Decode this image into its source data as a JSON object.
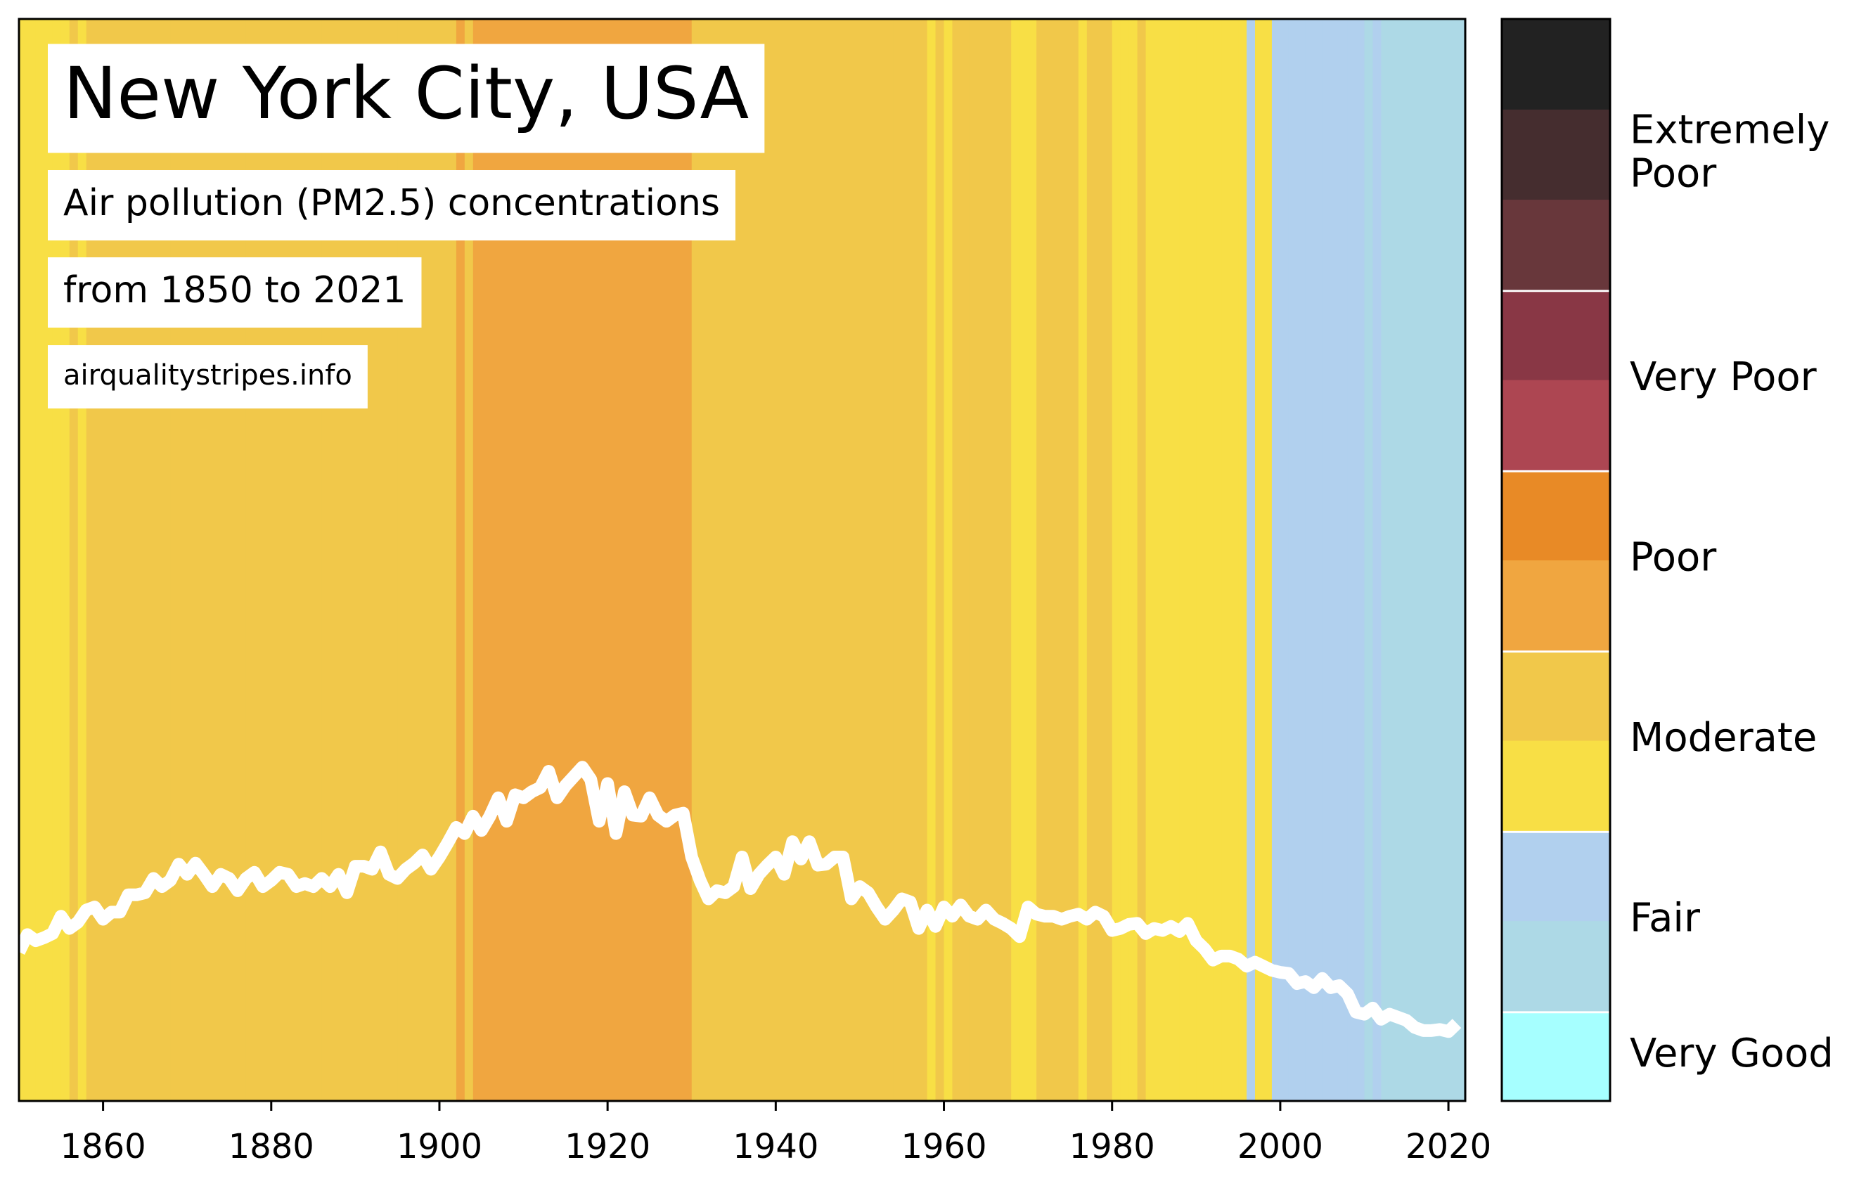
{
  "chart_data": {
    "type": "stripes",
    "title": "New York City, USA",
    "subtitle": "Air pollution (PM2.5) concentrations",
    "subtitle2": "from 1850 to 2021",
    "source": "airqualitystripes.info",
    "x": [
      1850,
      1851,
      1852,
      1853,
      1854,
      1855,
      1856,
      1857,
      1858,
      1859,
      1860,
      1861,
      1862,
      1863,
      1864,
      1865,
      1866,
      1867,
      1868,
      1869,
      1870,
      1871,
      1872,
      1873,
      1874,
      1875,
      1876,
      1877,
      1878,
      1879,
      1880,
      1881,
      1882,
      1883,
      1884,
      1885,
      1886,
      1887,
      1888,
      1889,
      1890,
      1891,
      1892,
      1893,
      1894,
      1895,
      1896,
      1897,
      1898,
      1899,
      1900,
      1901,
      1902,
      1903,
      1904,
      1905,
      1906,
      1907,
      1908,
      1909,
      1910,
      1911,
      1912,
      1913,
      1914,
      1915,
      1916,
      1917,
      1918,
      1919,
      1920,
      1921,
      1922,
      1923,
      1924,
      1925,
      1926,
      1927,
      1928,
      1929,
      1930,
      1931,
      1932,
      1933,
      1934,
      1935,
      1936,
      1937,
      1938,
      1939,
      1940,
      1941,
      1942,
      1943,
      1944,
      1945,
      1946,
      1947,
      1948,
      1949,
      1950,
      1951,
      1952,
      1953,
      1954,
      1955,
      1956,
      1957,
      1958,
      1959,
      1960,
      1961,
      1962,
      1963,
      1964,
      1965,
      1966,
      1967,
      1968,
      1969,
      1970,
      1971,
      1972,
      1973,
      1974,
      1975,
      1976,
      1977,
      1978,
      1979,
      1980,
      1981,
      1982,
      1983,
      1984,
      1985,
      1986,
      1987,
      1988,
      1989,
      1990,
      1991,
      1992,
      1993,
      1994,
      1995,
      1996,
      1997,
      1998,
      1999,
      2000,
      2001,
      2002,
      2003,
      2004,
      2005,
      2006,
      2007,
      2008,
      2009,
      2010,
      2011,
      2012,
      2013,
      2014,
      2015,
      2016,
      2017,
      2018,
      2019,
      2020,
      2021
    ],
    "series": [
      {
        "color": "#ffffff",
        "values": [
          14.6,
          16.3,
          15.7,
          16.0,
          16.4,
          18.1,
          16.9,
          17.5,
          18.7,
          19.0,
          17.8,
          18.5,
          18.5,
          20.2,
          20.2,
          20.4,
          21.8,
          21.0,
          21.6,
          23.2,
          22.2,
          23.3,
          22.2,
          21.0,
          22.2,
          21.8,
          20.6,
          21.8,
          22.4,
          21.0,
          21.6,
          22.4,
          22.2,
          21.0,
          21.3,
          21.0,
          21.8,
          21.0,
          22.2,
          20.4,
          23.0,
          23.0,
          22.7,
          24.4,
          22.2,
          21.8,
          22.7,
          23.3,
          24.1,
          22.7,
          23.9,
          25.3,
          26.8,
          26.2,
          27.9,
          26.5,
          27.9,
          29.7,
          27.4,
          30.0,
          29.7,
          30.3,
          30.7,
          32.3,
          29.7,
          30.9,
          31.8,
          32.7,
          31.5,
          27.4,
          31.1,
          26.2,
          30.3,
          28.0,
          27.9,
          29.7,
          28.0,
          27.4,
          28.0,
          28.2,
          23.9,
          21.6,
          19.8,
          20.6,
          20.4,
          21.0,
          23.9,
          20.8,
          22.2,
          23.1,
          23.9,
          22.2,
          25.4,
          23.7,
          25.4,
          23.1,
          23.2,
          23.9,
          23.9,
          19.8,
          21.0,
          20.4,
          19.0,
          17.8,
          18.7,
          19.8,
          19.5,
          16.9,
          18.7,
          17.1,
          19.0,
          18.1,
          19.2,
          18.1,
          17.8,
          18.7,
          17.8,
          17.4,
          16.9,
          16.1,
          19.0,
          18.3,
          18.1,
          18.1,
          17.8,
          18.1,
          18.3,
          17.8,
          18.5,
          18.1,
          16.7,
          16.9,
          17.3,
          17.4,
          16.4,
          16.9,
          16.7,
          17.1,
          16.6,
          17.4,
          15.7,
          14.9,
          13.8,
          14.2,
          14.2,
          13.9,
          13.2,
          13.6,
          13.2,
          12.8,
          12.6,
          12.5,
          11.5,
          11.7,
          11.1,
          12.0,
          11.1,
          11.3,
          10.5,
          8.7,
          8.5,
          9.1,
          8.0,
          8.5,
          8.2,
          7.9,
          7.2,
          6.9,
          6.9,
          7.0,
          6.8,
          7.6
        ]
      }
    ],
    "stripe_colors": [
      "#f8df45",
      "#f8df45",
      "#f8df45",
      "#f8df45",
      "#f8df45",
      "#f8df45",
      "#f1c84a",
      "#f8df45",
      "#f1c84a",
      "#f1c84a",
      "#f1c84a",
      "#f1c84a",
      "#f1c84a",
      "#f1c84a",
      "#f1c84a",
      "#f1c84a",
      "#f1c84a",
      "#f1c84a",
      "#f1c84a",
      "#f1c84a",
      "#f1c84a",
      "#f1c84a",
      "#f1c84a",
      "#f1c84a",
      "#f1c84a",
      "#f1c84a",
      "#f1c84a",
      "#f1c84a",
      "#f1c84a",
      "#f1c84a",
      "#f1c84a",
      "#f1c84a",
      "#f1c84a",
      "#f1c84a",
      "#f1c84a",
      "#f1c84a",
      "#f1c84a",
      "#f1c84a",
      "#f1c84a",
      "#f1c84a",
      "#f1c84a",
      "#f1c84a",
      "#f1c84a",
      "#f1c84a",
      "#f1c84a",
      "#f1c84a",
      "#f1c84a",
      "#f1c84a",
      "#f1c84a",
      "#f1c84a",
      "#f1c84a",
      "#f1c84a",
      "#f0a640",
      "#f1c84a",
      "#f0a640",
      "#f0a640",
      "#f0a640",
      "#f0a640",
      "#f0a640",
      "#f0a640",
      "#f0a640",
      "#f0a640",
      "#f0a640",
      "#f0a640",
      "#f0a640",
      "#f0a640",
      "#f0a640",
      "#f0a640",
      "#f0a640",
      "#f0a640",
      "#f0a640",
      "#f0a640",
      "#f0a640",
      "#f0a640",
      "#f0a640",
      "#f0a640",
      "#f0a640",
      "#f0a640",
      "#f0a640",
      "#f0a640",
      "#f1c84a",
      "#f1c84a",
      "#f1c84a",
      "#f1c84a",
      "#f1c84a",
      "#f1c84a",
      "#f1c84a",
      "#f1c84a",
      "#f1c84a",
      "#f1c84a",
      "#f1c84a",
      "#f1c84a",
      "#f1c84a",
      "#f1c84a",
      "#f1c84a",
      "#f1c84a",
      "#f1c84a",
      "#f1c84a",
      "#f1c84a",
      "#f1c84a",
      "#f1c84a",
      "#f1c84a",
      "#f1c84a",
      "#f1c84a",
      "#f1c84a",
      "#f1c84a",
      "#f1c84a",
      "#f1c84a",
      "#f8df45",
      "#f1c84a",
      "#f8df45",
      "#f1c84a",
      "#f1c84a",
      "#f1c84a",
      "#f1c84a",
      "#f1c84a",
      "#f1c84a",
      "#f1c84a",
      "#f8df45",
      "#f8df45",
      "#f8df45",
      "#f1c84a",
      "#f1c84a",
      "#f1c84a",
      "#f1c84a",
      "#f1c84a",
      "#f8df45",
      "#f1c84a",
      "#f1c84a",
      "#f1c84a",
      "#f8df45",
      "#f8df45",
      "#f8df45",
      "#f1c84a",
      "#f8df45",
      "#f8df45",
      "#f8df45",
      "#f8df45",
      "#f8df45",
      "#f8df45",
      "#f8df45",
      "#f8df45",
      "#f8df45",
      "#f8df45",
      "#f8df45",
      "#f8df45",
      "#b1d0ee",
      "#f8df45",
      "#f8df45",
      "#b1d0ee",
      "#b1d0ee",
      "#b1d0ee",
      "#b1d0ee",
      "#b1d0ee",
      "#b1d0ee",
      "#b1d0ee",
      "#b1d0ee",
      "#b1d0ee",
      "#b1d0ee",
      "#b1d0ee",
      "#add9e6",
      "#b1d0ee",
      "#add9e6",
      "#add9e6",
      "#add9e6",
      "#add9e6",
      "#add9e6",
      "#add9e6",
      "#add9e6",
      "#add9e6",
      "#add9e6",
      "#add9e6"
    ],
    "xlim": [
      1850,
      2022
    ],
    "xticks": [
      1860,
      1880,
      1900,
      1920,
      1940,
      1960,
      1980,
      2000,
      2020
    ],
    "ylim": [
      0,
      106
    ],
    "colorbar": [
      {
        "label": [
          "Very Good"
        ],
        "colors": [
          "#a6ffff"
        ]
      },
      {
        "label": [
          "Fair"
        ],
        "colors": [
          "#add9e6",
          "#b1d0ee"
        ]
      },
      {
        "label": [
          "Moderate"
        ],
        "colors": [
          "#f8df45",
          "#f1c84a"
        ]
      },
      {
        "label": [
          "Poor"
        ],
        "colors": [
          "#f0a640",
          "#e88a26"
        ]
      },
      {
        "label": [
          "Very Poor"
        ],
        "colors": [
          "#ad4652",
          "#893745"
        ]
      },
      {
        "label": [
          "Extremely",
          "Poor"
        ],
        "colors": [
          "#68373b",
          "#452d2f",
          "#222222"
        ]
      }
    ]
  }
}
